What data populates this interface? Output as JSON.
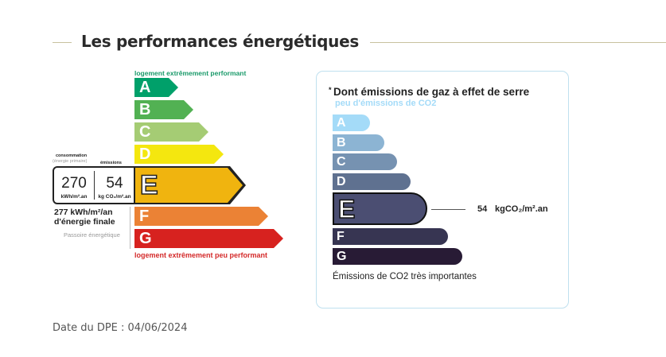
{
  "header": {
    "title": "Les performances énergétiques"
  },
  "energy": {
    "top_label": "logement extrêmement performant",
    "bottom_label": "logement extrêmement peu performant",
    "classes": [
      {
        "letter": "A",
        "color": "#00a06a"
      },
      {
        "letter": "B",
        "color": "#52b153"
      },
      {
        "letter": "C",
        "color": "#a5cc74"
      },
      {
        "letter": "D",
        "color": "#f4e70f"
      },
      {
        "letter": "E",
        "color": "#f0b40f"
      },
      {
        "letter": "F",
        "color": "#eb8235"
      },
      {
        "letter": "G",
        "color": "#d7221f"
      }
    ],
    "current": "E",
    "consumption_label": "consommation",
    "consumption_sub": "(énergie primaire)",
    "emissions_label": "émissions",
    "consumption_value": "270",
    "consumption_unit": "kWh/m².an",
    "emissions_value": "54",
    "emissions_unit": "kg CO₂/m².an",
    "final_energy": "277 kWh/m²/an",
    "final_energy_label": "d'énergie finale",
    "passoire": "Passoire énergétique"
  },
  "ges": {
    "title_mark": "*",
    "title": "Dont émissions de gaz à effet de serre",
    "top_label": "peu d'émissions de CO2",
    "bottom_label": "Émissions de CO2 très importantes",
    "classes": [
      {
        "letter": "A",
        "color": "#a4dbf8"
      },
      {
        "letter": "B",
        "color": "#8cb4d3"
      },
      {
        "letter": "C",
        "color": "#7692b1"
      },
      {
        "letter": "D",
        "color": "#5f7190"
      },
      {
        "letter": "E",
        "color": "#4b4e72"
      },
      {
        "letter": "F",
        "color": "#373552"
      },
      {
        "letter": "G",
        "color": "#281b35"
      }
    ],
    "current": "E",
    "value": "54",
    "unit": "kgCO₂/m².an"
  },
  "footer": {
    "date": "Date du DPE : 04/06/2024"
  }
}
